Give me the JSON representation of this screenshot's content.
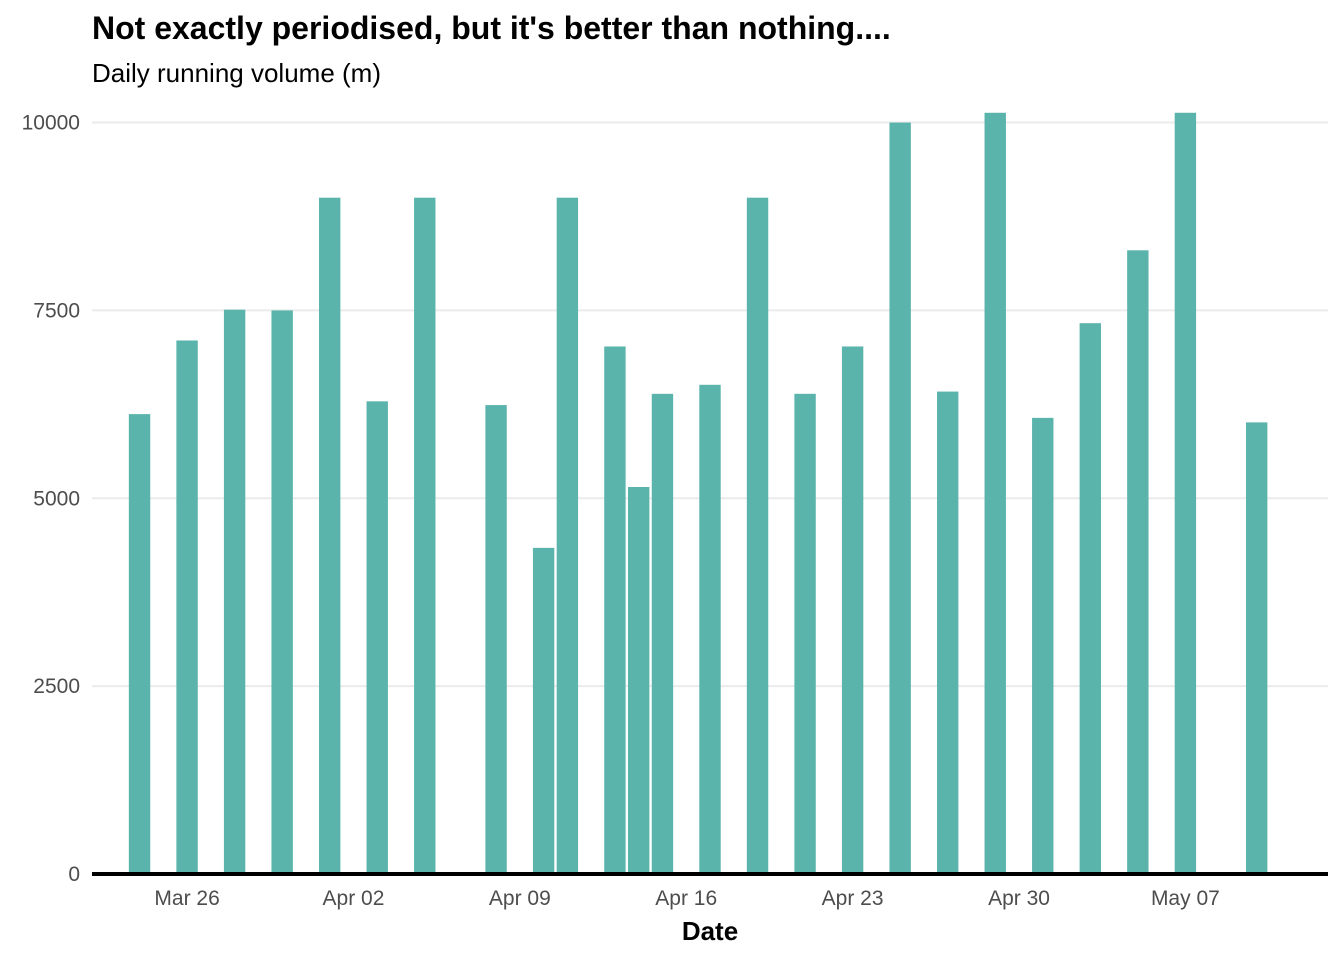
{
  "chart_data": {
    "type": "bar",
    "title": "Not exactly periodised, but it's better than nothing....",
    "subtitle": "Daily running volume (m)",
    "xlabel": "Date",
    "ylabel": "",
    "ylim": [
      0,
      10300
    ],
    "xlim": [
      "2023-03-22",
      "2023-05-13"
    ],
    "grid": true,
    "legend": "none",
    "bar_color": "#5ab4ac",
    "y_ticks": [
      0,
      2500,
      5000,
      7500,
      10000
    ],
    "x_ticks": [
      {
        "date": "2023-03-26",
        "label": "Mar 26"
      },
      {
        "date": "2023-04-02",
        "label": "Apr 02"
      },
      {
        "date": "2023-04-09",
        "label": "Apr 09"
      },
      {
        "date": "2023-04-16",
        "label": "Apr 16"
      },
      {
        "date": "2023-04-23",
        "label": "Apr 23"
      },
      {
        "date": "2023-04-30",
        "label": "Apr 30"
      },
      {
        "date": "2023-05-07",
        "label": "May 07"
      }
    ],
    "x": [
      "2023-03-24",
      "2023-03-26",
      "2023-03-28",
      "2023-03-30",
      "2023-04-01",
      "2023-04-03",
      "2023-04-05",
      "2023-04-08",
      "2023-04-10",
      "2023-04-11",
      "2023-04-13",
      "2023-04-14",
      "2023-04-15",
      "2023-04-17",
      "2023-04-19",
      "2023-04-21",
      "2023-04-23",
      "2023-04-25",
      "2023-04-27",
      "2023-04-29",
      "2023-05-01",
      "2023-05-03",
      "2023-05-05",
      "2023-05-07",
      "2023-05-10"
    ],
    "values": [
      6120,
      7100,
      7510,
      7500,
      9000,
      6290,
      9000,
      6240,
      4340,
      9000,
      7020,
      5150,
      6390,
      6510,
      9000,
      6390,
      7020,
      10000,
      6420,
      10130,
      6070,
      7330,
      8300,
      10130,
      6010
    ]
  }
}
